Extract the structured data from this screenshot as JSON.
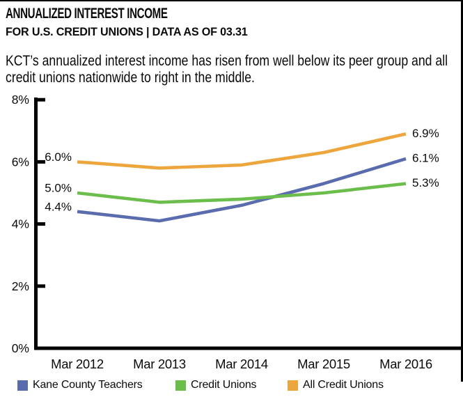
{
  "chart_data": {
    "type": "line",
    "title": "ANNUALIZED INTEREST INCOME",
    "subtitle": "FOR U.S. CREDIT UNIONS | DATA AS OF 03.31",
    "annotation_line1": "KCT’s annualized interest income has risen from well below its peer group and all",
    "annotation_line2": "credit unions nationwide to right in the middle.",
    "x_labels": [
      "Mar 2012",
      "Mar 2013",
      "Mar 2014",
      "Mar 2015",
      "Mar 2016"
    ],
    "y_tick_labels": [
      "0%",
      "2%",
      "4%",
      "6%",
      "8%"
    ],
    "ylim": [
      0,
      8
    ],
    "xlabel": "",
    "ylabel": "",
    "grid": false,
    "legend_position": "bottom",
    "axis_color": "#000000",
    "series": [
      {
        "name": "Kane County Teachers",
        "color": "#5A6CAE",
        "values": [
          4.4,
          4.1,
          4.6,
          5.3,
          6.1
        ],
        "first_point_label": "4.4%",
        "last_point_label": "6.1%"
      },
      {
        "name": "Credit Unions",
        "color": "#6BBE4B",
        "values": [
          5.0,
          4.7,
          4.8,
          5.0,
          5.3
        ],
        "first_point_label": "5.0%",
        "last_point_label": "5.3%"
      },
      {
        "name": "All Credit Unions",
        "color": "#EDA63D",
        "values": [
          6.0,
          5.8,
          5.9,
          6.3,
          6.9
        ],
        "first_point_label": "6.0%",
        "last_point_label": "6.9%"
      }
    ]
  }
}
